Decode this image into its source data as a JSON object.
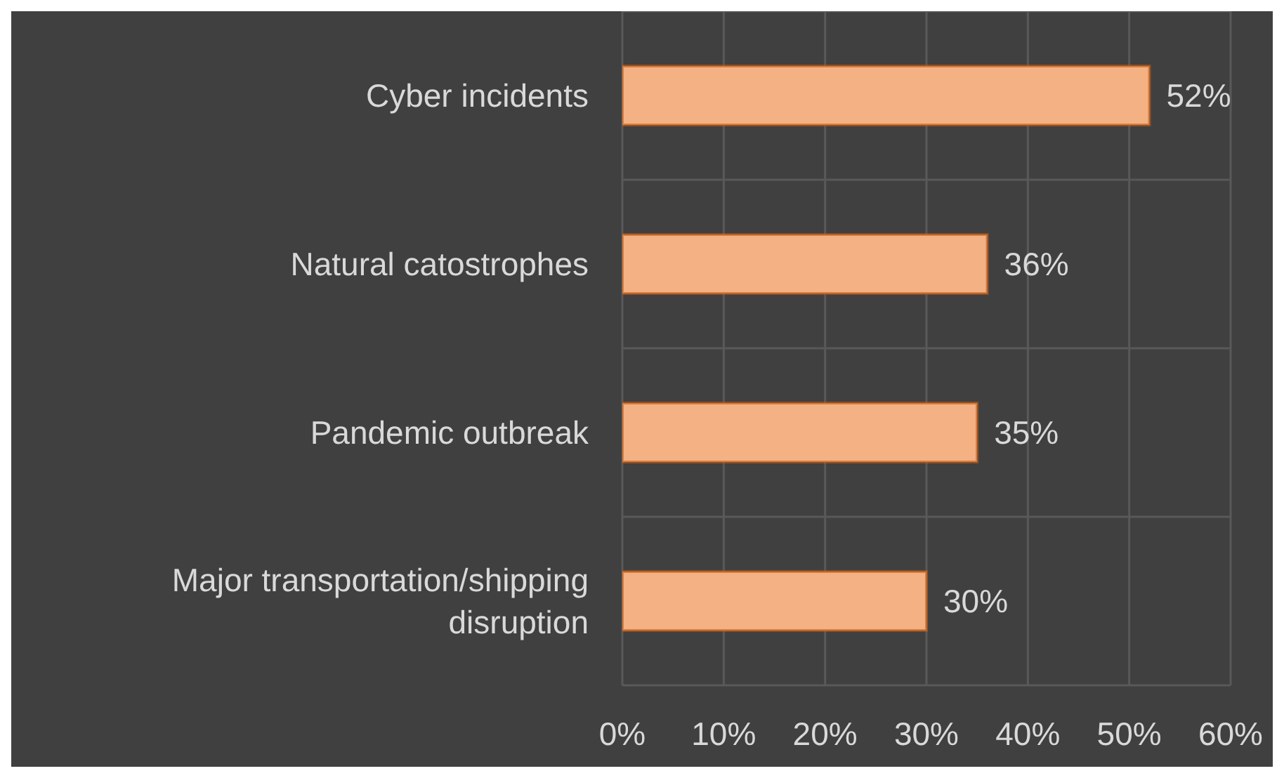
{
  "chart_data": {
    "type": "bar",
    "orientation": "horizontal",
    "categories": [
      "Cyber incidents",
      "Natural catostrophes",
      "Pandemic outbreak",
      "Major transportation/shipping disruption"
    ],
    "values": [
      52,
      36,
      35,
      30
    ],
    "color": "#f4b183",
    "value_labels": [
      "52%",
      "36%",
      "35%",
      "30%"
    ],
    "xlim": [
      0,
      60
    ],
    "xticks": [
      {
        "value": 0,
        "label": "0%"
      },
      {
        "value": 10,
        "label": "10%"
      },
      {
        "value": 20,
        "label": "20%"
      },
      {
        "value": 30,
        "label": "30%"
      },
      {
        "value": 40,
        "label": "40%"
      },
      {
        "value": 50,
        "label": "50%"
      },
      {
        "value": 60,
        "label": "60%"
      }
    ],
    "grid": true
  }
}
